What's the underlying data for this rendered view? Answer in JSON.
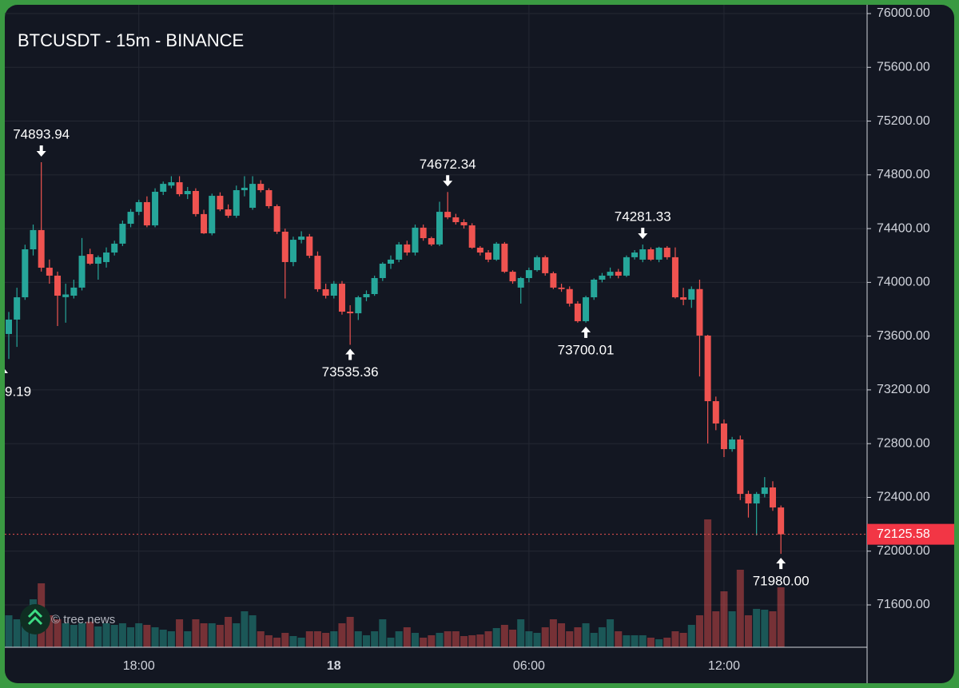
{
  "chart_data": {
    "type": "candlestick",
    "title": "BTCUSDT - 15m - BINANCE",
    "watermark": "© tree.news",
    "categories": [
      null,
      null,
      null,
      null,
      null,
      null,
      null,
      null,
      null,
      null,
      null,
      null,
      null,
      null,
      null,
      null,
      "18:00",
      null,
      null,
      null,
      null,
      null,
      null,
      null,
      null,
      null,
      null,
      null,
      null,
      null,
      null,
      null,
      null,
      null,
      null,
      null,
      null,
      null,
      null,
      null,
      "18",
      null,
      null,
      null,
      null,
      null,
      null,
      null,
      null,
      null,
      null,
      null,
      null,
      null,
      null,
      null,
      null,
      null,
      null,
      null,
      null,
      null,
      null,
      null,
      "06:00",
      null,
      null,
      null,
      null,
      null,
      null,
      null,
      null,
      null,
      null,
      null,
      null,
      null,
      null,
      null,
      null,
      null,
      null,
      null,
      null,
      null,
      null,
      null,
      "12:00",
      null,
      null,
      null,
      null,
      null,
      null,
      null
    ],
    "open": [
      73616,
      73723,
      73889,
      74246,
      74389,
      74109,
      74050,
      73890,
      73901,
      73961,
      74210,
      74139,
      74151,
      74222,
      74288,
      74436,
      74525,
      74597,
      74424,
      74674,
      74720,
      74745,
      74656,
      74680,
      74508,
      74365,
      74644,
      74543,
      74496,
      74686,
      74555,
      74733,
      74686,
      74567,
      74377,
      74151,
      74317,
      74341,
      74198,
      73949,
      73901,
      73990,
      73782,
      73770,
      73889,
      73913,
      74032,
      74139,
      74169,
      74282,
      74222,
      74407,
      74329,
      74282,
      74525,
      74484,
      74448,
      74424,
      74258,
      74222,
      74169,
      74288,
      74079,
      73961,
      74032,
      74091,
      74187,
      74068,
      73961,
      73950,
      73842,
      73711,
      73889,
      74020,
      74050,
      74079,
      74050,
      74187,
      74169,
      74246,
      74169,
      74258,
      74187,
      73889,
      73871,
      73950,
      73604,
      73116,
      72950,
      72759,
      72831,
      72426,
      72355,
      72426,
      72474,
      72325
    ],
    "high": [
      73780,
      73960,
      74280,
      74430,
      74893.94,
      74170,
      74080,
      73990,
      74020,
      74330,
      74250,
      74200,
      74260,
      74310,
      74460,
      74545,
      74615,
      74640,
      74700,
      74750,
      74790,
      74790,
      74710,
      74700,
      74540,
      74660,
      74670,
      74580,
      74720,
      74790,
      74790,
      74760,
      74700,
      74580,
      74400,
      74340,
      74380,
      74360,
      74230,
      73990,
      74010,
      74010,
      73830,
      73900,
      73940,
      74050,
      74150,
      74200,
      74300,
      74310,
      74430,
      74430,
      74340,
      74600,
      74672.34,
      74510,
      74470,
      74440,
      74270,
      74240,
      74300,
      74300,
      74090,
      74040,
      74110,
      74200,
      74200,
      74080,
      73990,
      73970,
      73860,
      73900,
      74030,
      74070,
      74110,
      74100,
      74200,
      74240,
      74281.33,
      74260,
      74265,
      74270,
      74260,
      73960,
      73970,
      74020,
      73610,
      73150,
      72980,
      72850,
      72860,
      72450,
      72440,
      72551,
      72520,
      72340
    ],
    "low": [
      73430,
      73520,
      73870,
      74200,
      74080,
      73990,
      73675,
      73700,
      73880,
      73940,
      74130,
      74020,
      74110,
      74200,
      74270,
      74410,
      74500,
      74410,
      74410,
      74650,
      74700,
      74640,
      74620,
      74490,
      74360,
      74350,
      74530,
      74480,
      74480,
      74640,
      74540,
      74670,
      74550,
      74360,
      73880,
      74120,
      74290,
      74180,
      73930,
      73880,
      73880,
      73760,
      73535.36,
      73720,
      73860,
      73900,
      74010,
      74100,
      74150,
      74200,
      74200,
      74310,
      74270,
      74270,
      74470,
      74430,
      74400,
      74250,
      74200,
      74150,
      74160,
      74070,
      73990,
      73842,
      74000,
      74080,
      74050,
      73950,
      73930,
      73820,
      73700,
      73700.01,
      73870,
      74000,
      74030,
      74030,
      74040,
      74170,
      74150,
      74160,
      74150,
      74170,
      73880,
      73830,
      73810,
      73300,
      72801,
      72900,
      72700,
      72740,
      72380,
      72250,
      72117,
      72400,
      72300,
      71980
    ],
    "close": [
      73723,
      73889,
      74246,
      74389,
      74109,
      74050,
      73901,
      73910,
      73961,
      74198,
      74139,
      74187,
      74222,
      74288,
      74436,
      74525,
      74597,
      74424,
      74674,
      74733,
      74745,
      74656,
      74680,
      74508,
      74365,
      74644,
      74543,
      74496,
      74686,
      74704,
      74733,
      74686,
      74567,
      74377,
      74151,
      74317,
      74341,
      74198,
      73949,
      73901,
      73990,
      73782,
      73770,
      73889,
      73913,
      74032,
      74139,
      74169,
      74282,
      74222,
      74407,
      74329,
      74282,
      74525,
      74484,
      74448,
      74424,
      74258,
      74222,
      74169,
      74288,
      74079,
      74008,
      74032,
      74091,
      74187,
      74068,
      73961,
      73950,
      73842,
      73711,
      73889,
      74020,
      74050,
      74079,
      74050,
      74187,
      74222,
      74246,
      74169,
      74258,
      74187,
      73889,
      73871,
      73950,
      73604,
      73116,
      72950,
      72759,
      72831,
      72426,
      72355,
      72426,
      72474,
      72325,
      72125.58
    ],
    "volume": [
      40,
      35,
      30,
      60,
      80,
      40,
      35,
      30,
      28,
      30,
      32,
      26,
      30,
      28,
      30,
      25,
      30,
      28,
      25,
      22,
      20,
      35,
      20,
      35,
      30,
      30,
      28,
      38,
      30,
      45,
      40,
      20,
      15,
      12,
      18,
      14,
      12,
      20,
      20,
      18,
      20,
      30,
      38,
      20,
      15,
      20,
      35,
      12,
      20,
      25,
      18,
      12,
      15,
      18,
      20,
      20,
      14,
      15,
      16,
      20,
      24,
      28,
      22,
      35,
      20,
      18,
      25,
      35,
      30,
      20,
      25,
      30,
      18,
      25,
      35,
      20,
      15,
      15,
      15,
      12,
      10,
      12,
      20,
      18,
      28,
      40,
      160,
      45,
      70,
      45,
      97,
      40,
      48,
      47,
      45,
      75
    ],
    "up_color": "#26a69a",
    "down_color": "#ef5350",
    "last_price": 72125.58,
    "annotations": [
      {
        "value": 74893.94,
        "label": "74893.94"
      },
      {
        "value": 74672.34,
        "label": "74672.34"
      },
      {
        "value": 74281.33,
        "label": "74281.33"
      },
      {
        "value": 73535.36,
        "label": "73535.36"
      },
      {
        "value": 73700.01,
        "label": "73700.01"
      },
      {
        "value": 71980,
        "label": "71980.00"
      }
    ],
    "cut_off_label": "9.19",
    "ylim": [
      71285,
      76101
    ],
    "yticks": [
      {
        "value": 71600,
        "label": "71600.00"
      },
      {
        "value": 72000,
        "label": "72000.00"
      },
      {
        "value": 72400,
        "label": "72400.00"
      },
      {
        "value": 72800,
        "label": "72800.00"
      },
      {
        "value": 73200,
        "label": "73200.00"
      },
      {
        "value": 73600,
        "label": "73600.00"
      },
      {
        "value": 74000,
        "label": "74000.00"
      },
      {
        "value": 74400,
        "label": "74400.00"
      },
      {
        "value": 74800,
        "label": "74800.00"
      },
      {
        "value": 75200,
        "label": "75200.00"
      },
      {
        "value": 75600,
        "label": "75600.00"
      },
      {
        "value": 76000,
        "label": "76000.00"
      }
    ],
    "grid": true
  }
}
